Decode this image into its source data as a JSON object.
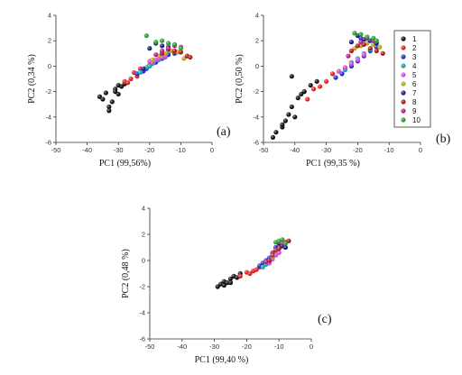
{
  "chart_data": [
    {
      "type": "scatter",
      "panel_label": "(a)",
      "xlabel": "PC1 (99,56%)",
      "ylabel": "PC2 (0,34 %)",
      "xlim": [
        -50,
        0
      ],
      "ylim": [
        -6,
        4
      ],
      "xticks": [
        "-50",
        "-40",
        "-30",
        "-20",
        "-10",
        "0"
      ],
      "yticks": [
        "-6",
        "-4",
        "-2",
        "0",
        "2",
        "4"
      ],
      "series": [
        {
          "name": "1",
          "points": [
            [
              -36,
              -2.4
            ],
            [
              -34,
              -2.1
            ],
            [
              -33,
              -3.2
            ],
            [
              -32,
              -2.8
            ],
            [
              -31,
              -1.8
            ],
            [
              -30,
              -2.2
            ],
            [
              -29,
              -1.6
            ],
            [
              -33,
              -3.5
            ],
            [
              -31,
              -2.0
            ],
            [
              -28,
              -1.4
            ],
            [
              -30,
              -1.5
            ],
            [
              -35,
              -2.6
            ]
          ]
        },
        {
          "name": "2",
          "points": [
            [
              -28,
              -1.2
            ],
            [
              -26,
              -1.0
            ],
            [
              -25,
              -0.5
            ],
            [
              -24,
              -0.8
            ],
            [
              -27,
              -1.3
            ],
            [
              -22,
              -0.3
            ],
            [
              -20,
              0.1
            ],
            [
              -18,
              0.4
            ],
            [
              -23,
              -0.2
            ]
          ]
        },
        {
          "name": "3",
          "points": [
            [
              -24,
              -0.6
            ],
            [
              -22,
              -0.4
            ],
            [
              -20,
              0.0
            ],
            [
              -18,
              0.3
            ],
            [
              -16,
              0.6
            ],
            [
              -14,
              0.9
            ],
            [
              -21,
              -0.2
            ],
            [
              -12,
              1.0
            ]
          ]
        },
        {
          "name": "4",
          "points": [
            [
              -23,
              -0.5
            ],
            [
              -21,
              -0.1
            ],
            [
              -19,
              0.2
            ],
            [
              -17,
              0.5
            ],
            [
              -15,
              0.7
            ],
            [
              -20,
              0.0
            ]
          ]
        },
        {
          "name": "5",
          "points": [
            [
              -20,
              0.4
            ],
            [
              -18,
              0.5
            ],
            [
              -16,
              0.7
            ],
            [
              -19,
              0.3
            ],
            [
              -17,
              0.6
            ],
            [
              -15,
              0.8
            ]
          ]
        },
        {
          "name": "6",
          "points": [
            [
              -19,
              0.5
            ],
            [
              -17,
              0.8
            ],
            [
              -15,
              1.0
            ],
            [
              -13,
              1.2
            ],
            [
              -11,
              1.1
            ],
            [
              -9,
              0.6
            ]
          ]
        },
        {
          "name": "7",
          "points": [
            [
              -22,
              -0.2
            ],
            [
              -20,
              1.4
            ],
            [
              -18,
              1.8
            ],
            [
              -16,
              1.6
            ],
            [
              -14,
              1.5
            ],
            [
              -12,
              1.7
            ]
          ]
        },
        {
          "name": "8",
          "points": [
            [
              -16,
              1.0
            ],
            [
              -14,
              1.3
            ],
            [
              -12,
              1.2
            ],
            [
              -10,
              1.1
            ],
            [
              -8,
              0.8
            ],
            [
              -7,
              0.7
            ]
          ]
        },
        {
          "name": "9",
          "points": [
            [
              -18,
              0.9
            ],
            [
              -16,
              1.2
            ],
            [
              -14,
              1.4
            ],
            [
              -12,
              1.6
            ],
            [
              -10,
              1.5
            ]
          ]
        },
        {
          "name": "10",
          "points": [
            [
              -21,
              2.4
            ],
            [
              -18,
              1.9
            ],
            [
              -16,
              2.0
            ],
            [
              -14,
              1.8
            ],
            [
              -12,
              1.7
            ],
            [
              -10,
              1.4
            ]
          ]
        }
      ]
    },
    {
      "type": "scatter",
      "panel_label": "(b)",
      "xlabel": "PC1 (99,35 %)",
      "ylabel": "PC2 (0,50 %)",
      "xlim": [
        -50,
        0
      ],
      "ylim": [
        -6,
        4
      ],
      "xticks": [
        "-50",
        "-40",
        "-30",
        "-20",
        "-10",
        "0"
      ],
      "yticks": [
        "-6",
        "-4",
        "-2",
        "0",
        "2",
        "4"
      ],
      "series": [
        {
          "name": "1",
          "points": [
            [
              -47,
              -5.6
            ],
            [
              -46,
              -5.2
            ],
            [
              -44,
              -4.8
            ],
            [
              -43,
              -4.3
            ],
            [
              -42,
              -3.8
            ],
            [
              -41,
              -3.2
            ],
            [
              -40,
              -4.0
            ],
            [
              -39,
              -2.5
            ],
            [
              -37,
              -2.0
            ],
            [
              -35,
              -1.5
            ],
            [
              -33,
              -1.2
            ],
            [
              -41,
              -0.8
            ],
            [
              -38,
              -2.2
            ],
            [
              -44,
              -4.6
            ]
          ]
        },
        {
          "name": "2",
          "points": [
            [
              -34,
              -1.8
            ],
            [
              -32,
              -1.6
            ],
            [
              -30,
              -1.2
            ],
            [
              -28,
              -0.6
            ],
            [
              -26,
              -0.4
            ],
            [
              -36,
              -2.6
            ],
            [
              -24,
              -0.2
            ],
            [
              -22,
              0.2
            ]
          ]
        },
        {
          "name": "3",
          "points": [
            [
              -25,
              -0.6
            ],
            [
              -22,
              0.0
            ],
            [
              -20,
              0.4
            ],
            [
              -18,
              0.8
            ],
            [
              -16,
              1.2
            ],
            [
              -14,
              1.5
            ],
            [
              -19,
              2.2
            ],
            [
              -27,
              -0.9
            ]
          ]
        },
        {
          "name": "4",
          "points": [
            [
              -24,
              -0.3
            ],
            [
              -22,
              0.3
            ],
            [
              -20,
              0.6
            ],
            [
              -18,
              1.0
            ],
            [
              -16,
              1.3
            ]
          ]
        },
        {
          "name": "5",
          "points": [
            [
              -26,
              -0.4
            ],
            [
              -24,
              -0.1
            ],
            [
              -22,
              0.2
            ],
            [
              -20,
              0.5
            ],
            [
              -18,
              0.9
            ]
          ]
        },
        {
          "name": "6",
          "points": [
            [
              -21,
              1.4
            ],
            [
              -19,
              1.6
            ],
            [
              -17,
              1.8
            ],
            [
              -15,
              1.7
            ],
            [
              -13,
              1.5
            ]
          ]
        },
        {
          "name": "7",
          "points": [
            [
              -20,
              2.4
            ],
            [
              -18,
              2.1
            ],
            [
              -16,
              2.0
            ],
            [
              -14,
              1.8
            ],
            [
              -22,
              1.9
            ]
          ]
        },
        {
          "name": "8",
          "points": [
            [
              -22,
              1.2
            ],
            [
              -20,
              1.6
            ],
            [
              -18,
              1.7
            ],
            [
              -16,
              1.4
            ],
            [
              -14,
              1.2
            ],
            [
              -12,
              1.0
            ]
          ]
        },
        {
          "name": "9",
          "points": [
            [
              -19,
              1.9
            ],
            [
              -17,
              2.2
            ],
            [
              -15,
              2.0
            ],
            [
              -23,
              0.8
            ]
          ]
        },
        {
          "name": "10",
          "points": [
            [
              -21,
              2.6
            ],
            [
              -19,
              2.5
            ],
            [
              -17,
              2.3
            ],
            [
              -15,
              2.2
            ],
            [
              -14,
              2.0
            ]
          ]
        }
      ]
    },
    {
      "type": "scatter",
      "panel_label": "(c)",
      "xlabel": "PC1 (99,40 %)",
      "ylabel": "PC2 (0,48 %)",
      "xlim": [
        -50,
        0
      ],
      "ylim": [
        -6,
        4
      ],
      "xticks": [
        "-50",
        "-40",
        "-30",
        "-20",
        "-10",
        "0"
      ],
      "yticks": [
        "-6",
        "-4",
        "-2",
        "0",
        "2",
        "4"
      ],
      "series": [
        {
          "name": "1",
          "points": [
            [
              -29,
              -2.0
            ],
            [
              -28,
              -1.8
            ],
            [
              -27,
              -1.6
            ],
            [
              -26,
              -1.7
            ],
            [
              -25,
              -1.4
            ],
            [
              -24,
              -1.2
            ],
            [
              -23,
              -1.3
            ],
            [
              -27,
              -1.9
            ],
            [
              -25,
              -1.7
            ],
            [
              -22,
              -1.0
            ]
          ]
        },
        {
          "name": "2",
          "points": [
            [
              -22,
              -1.2
            ],
            [
              -20,
              -0.9
            ],
            [
              -19,
              -1.0
            ],
            [
              -18,
              -0.8
            ],
            [
              -17,
              -0.7
            ],
            [
              -16,
              -0.5
            ]
          ]
        },
        {
          "name": "3",
          "points": [
            [
              -16,
              -0.4
            ],
            [
              -15,
              -0.2
            ],
            [
              -14,
              0.0
            ],
            [
              -13,
              0.2
            ],
            [
              -12,
              0.5
            ]
          ]
        },
        {
          "name": "4",
          "points": [
            [
              -15,
              -0.5
            ],
            [
              -14,
              -0.3
            ],
            [
              -13,
              -0.1
            ],
            [
              -12,
              0.3
            ]
          ]
        },
        {
          "name": "5",
          "points": [
            [
              -13,
              -0.2
            ],
            [
              -12,
              0.1
            ],
            [
              -11,
              0.4
            ],
            [
              -10,
              0.6
            ]
          ]
        },
        {
          "name": "6",
          "points": [
            [
              -12,
              0.3
            ],
            [
              -11,
              0.7
            ],
            [
              -10,
              1.0
            ],
            [
              -9,
              1.2
            ]
          ]
        },
        {
          "name": "7",
          "points": [
            [
              -11,
              1.0
            ],
            [
              -10,
              1.3
            ],
            [
              -9,
              1.1
            ],
            [
              -8,
              1.0
            ]
          ]
        },
        {
          "name": "8",
          "points": [
            [
              -13,
              0.0
            ],
            [
              -12,
              0.6
            ],
            [
              -10,
              0.9
            ],
            [
              -8,
              1.4
            ],
            [
              -7,
              1.5
            ]
          ]
        },
        {
          "name": "9",
          "points": [
            [
              -14,
              -0.1
            ],
            [
              -12,
              0.4
            ],
            [
              -11,
              0.8
            ],
            [
              -9,
              1.3
            ]
          ]
        },
        {
          "name": "10",
          "points": [
            [
              -11,
              1.4
            ],
            [
              -10,
              1.5
            ],
            [
              -9,
              1.6
            ],
            [
              -8,
              1.3
            ]
          ]
        }
      ]
    }
  ],
  "legend": {
    "placement": "right of panel (b)",
    "entries": [
      {
        "label": "1",
        "color": "#111111"
      },
      {
        "label": "2",
        "color": "#e02020"
      },
      {
        "label": "3",
        "color": "#1b2ecf"
      },
      {
        "label": "4",
        "color": "#1aa3a8"
      },
      {
        "label": "5",
        "color": "#d946e6"
      },
      {
        "label": "6",
        "color": "#b3a61c"
      },
      {
        "label": "7",
        "color": "#1a1a8c"
      },
      {
        "label": "8",
        "color": "#b01818"
      },
      {
        "label": "9",
        "color": "#b02080"
      },
      {
        "label": "10",
        "color": "#2c9c2c"
      }
    ]
  }
}
